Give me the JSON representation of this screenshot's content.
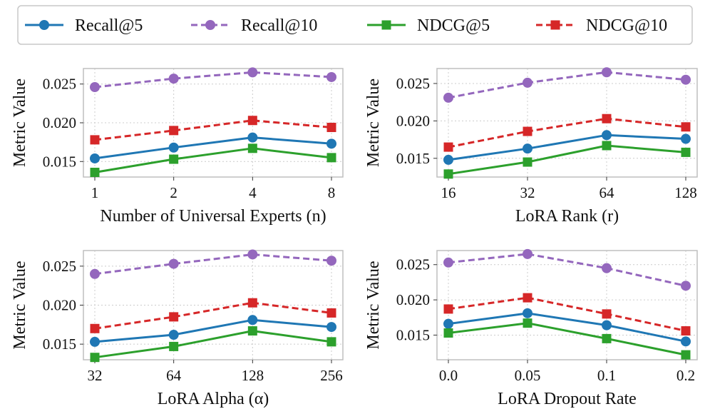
{
  "legend": {
    "entries": [
      {
        "name": "Recall@5",
        "color": "#1f77b4",
        "marker": "circle",
        "dash": "solid"
      },
      {
        "name": "Recall@10",
        "color": "#9467bd",
        "marker": "circle",
        "dash": "dashed"
      },
      {
        "name": "NDCG@5",
        "color": "#2ca02c",
        "marker": "square",
        "dash": "solid"
      },
      {
        "name": "NDCG@10",
        "color": "#d62728",
        "marker": "square",
        "dash": "dashed"
      }
    ]
  },
  "chart_data": [
    {
      "type": "line",
      "title": "",
      "xlabel": "Number of Universal Experts (n)",
      "ylabel": "Metric Value",
      "categories": [
        "1",
        "2",
        "4",
        "8"
      ],
      "ylim": [
        0.013,
        0.027
      ],
      "yticks": [
        "0.015",
        "0.020",
        "0.025"
      ],
      "series": [
        {
          "name": "Recall@5",
          "values": [
            0.0154,
            0.0168,
            0.0181,
            0.0173
          ]
        },
        {
          "name": "Recall@10",
          "values": [
            0.0246,
            0.0257,
            0.0265,
            0.0259
          ]
        },
        {
          "name": "NDCG@5",
          "values": [
            0.0136,
            0.0153,
            0.0167,
            0.0155
          ]
        },
        {
          "name": "NDCG@10",
          "values": [
            0.0178,
            0.019,
            0.0203,
            0.0194
          ]
        }
      ]
    },
    {
      "type": "line",
      "title": "",
      "xlabel": "LoRA Rank (r)",
      "ylabel": "Metric Value",
      "categories": [
        "16",
        "32",
        "64",
        "128"
      ],
      "ylim": [
        0.0125,
        0.027
      ],
      "yticks": [
        "0.015",
        "0.020",
        "0.025"
      ],
      "series": [
        {
          "name": "Recall@5",
          "values": [
            0.0148,
            0.0163,
            0.0181,
            0.0176
          ]
        },
        {
          "name": "Recall@10",
          "values": [
            0.0231,
            0.0251,
            0.0265,
            0.0255
          ]
        },
        {
          "name": "NDCG@5",
          "values": [
            0.0129,
            0.0145,
            0.0167,
            0.0158
          ]
        },
        {
          "name": "NDCG@10",
          "values": [
            0.0165,
            0.0186,
            0.0203,
            0.0192
          ]
        }
      ]
    },
    {
      "type": "line",
      "title": "",
      "xlabel": "LoRA Alpha (α)",
      "ylabel": "Metric Value",
      "categories": [
        "32",
        "64",
        "128",
        "256"
      ],
      "ylim": [
        0.013,
        0.027
      ],
      "yticks": [
        "0.015",
        "0.020",
        "0.025"
      ],
      "series": [
        {
          "name": "Recall@5",
          "values": [
            0.0153,
            0.0162,
            0.0181,
            0.0172
          ]
        },
        {
          "name": "Recall@10",
          "values": [
            0.024,
            0.0253,
            0.0265,
            0.0257
          ]
        },
        {
          "name": "NDCG@5",
          "values": [
            0.0133,
            0.0147,
            0.0167,
            0.0153
          ]
        },
        {
          "name": "NDCG@10",
          "values": [
            0.017,
            0.0185,
            0.0203,
            0.019
          ]
        }
      ]
    },
    {
      "type": "line",
      "title": "",
      "xlabel": "LoRA Dropout Rate",
      "ylabel": "Metric Value",
      "categories": [
        "0.0",
        "0.05",
        "0.1",
        "0.2"
      ],
      "ylim": [
        0.0115,
        0.027
      ],
      "yticks": [
        "0.015",
        "0.020",
        "0.025"
      ],
      "series": [
        {
          "name": "Recall@5",
          "values": [
            0.0166,
            0.0181,
            0.0164,
            0.0141
          ]
        },
        {
          "name": "Recall@10",
          "values": [
            0.0253,
            0.0265,
            0.0245,
            0.022
          ]
        },
        {
          "name": "NDCG@5",
          "values": [
            0.0153,
            0.0167,
            0.0145,
            0.0122
          ]
        },
        {
          "name": "NDCG@10",
          "values": [
            0.0187,
            0.0203,
            0.018,
            0.0156
          ]
        }
      ]
    }
  ]
}
